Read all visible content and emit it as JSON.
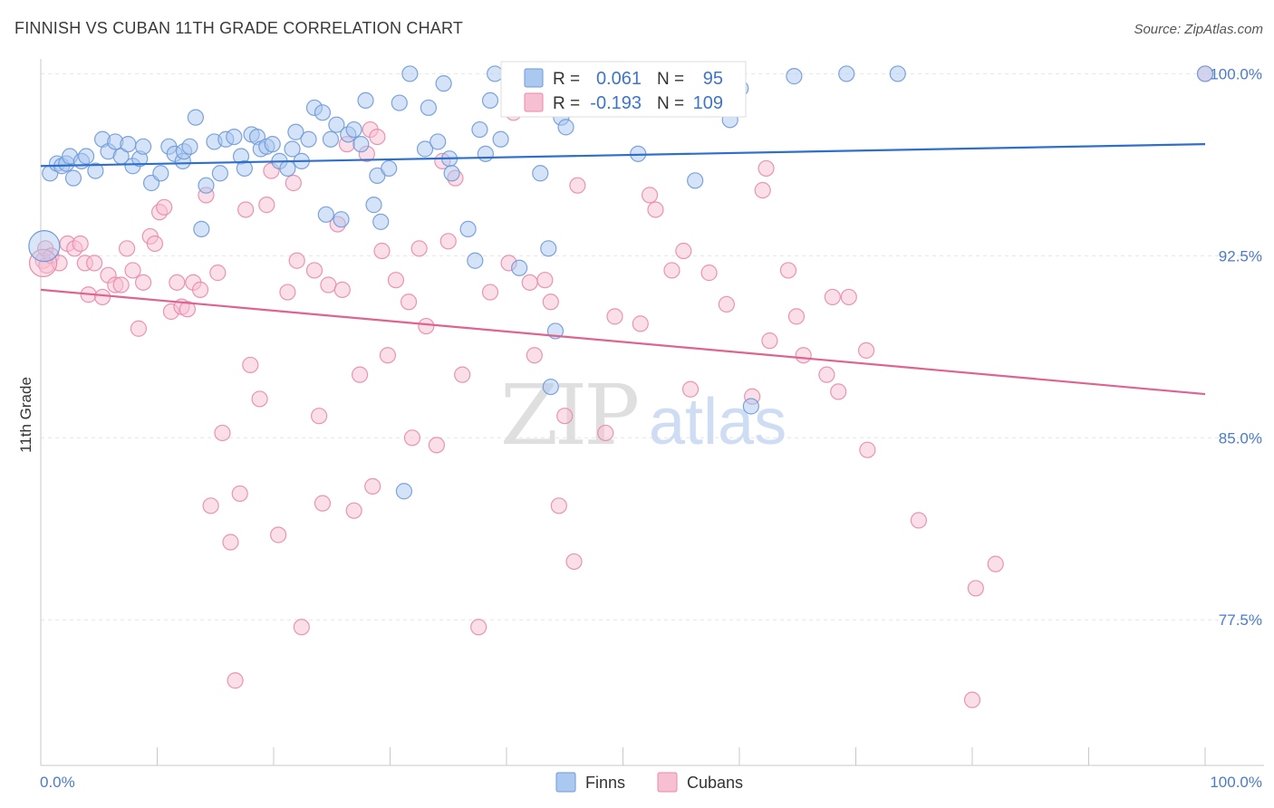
{
  "header": {
    "title": "FINNISH VS CUBAN 11TH GRADE CORRELATION CHART",
    "source": "Source: ZipAtlas.com"
  },
  "watermark": {
    "zip": "ZIP",
    "atlas": "atlas"
  },
  "stats_legend": {
    "finns": {
      "r_label": "R =",
      "r_value": "0.061",
      "n_label": "N =",
      "n_value": "95"
    },
    "cubans": {
      "r_label": "R =",
      "r_value": "-0.193",
      "n_label": "N =",
      "n_value": "109"
    }
  },
  "bottom_legend": {
    "finns": "Finns",
    "cubans": "Cubans"
  },
  "colors": {
    "finns_fill": "#aac8f0",
    "finns_stroke": "#6f9ad8",
    "finns_line": "#2e6fce",
    "cubans_fill": "#f7bfd2",
    "cubans_stroke": "#e98aab",
    "cubans_line": "#e0628f",
    "tick_text": "#4a7cc9",
    "grid": "#e6e6e6"
  },
  "chart_data": {
    "type": "scatter",
    "title": "FINNISH VS CUBAN 11TH GRADE CORRELATION CHART",
    "xlabel": "",
    "ylabel": "11th Grade",
    "xlim": [
      0,
      100
    ],
    "ylim": [
      71.5,
      100.8
    ],
    "x_tick_labels": [
      "0.0%",
      "100.0%"
    ],
    "y_ticks": [
      77.5,
      85.0,
      92.5,
      100.0
    ],
    "y_tick_labels": [
      "77.5%",
      "85.0%",
      "92.5%",
      "100.0%"
    ],
    "grid": "horizontal dashed",
    "legend_position": "top-center",
    "series": [
      {
        "name": "Finns",
        "trend": {
          "x": [
            0,
            100
          ],
          "y": [
            96.2,
            97.1
          ]
        },
        "points": [
          [
            0.8,
            95.9
          ],
          [
            1.4,
            96.3
          ],
          [
            1.8,
            96.2
          ],
          [
            2.2,
            96.3
          ],
          [
            2.5,
            96.6
          ],
          [
            2.8,
            95.7
          ],
          [
            3.5,
            96.4
          ],
          [
            3.9,
            96.6
          ],
          [
            4.7,
            96.0
          ],
          [
            5.3,
            97.3
          ],
          [
            5.8,
            96.8
          ],
          [
            6.4,
            97.2
          ],
          [
            6.9,
            96.6
          ],
          [
            7.5,
            97.1
          ],
          [
            7.9,
            96.2
          ],
          [
            8.5,
            96.5
          ],
          [
            8.8,
            97.0
          ],
          [
            9.5,
            95.5
          ],
          [
            10.3,
            95.9
          ],
          [
            11.0,
            97.0
          ],
          [
            11.5,
            96.7
          ],
          [
            12.2,
            96.4
          ],
          [
            12.3,
            96.8
          ],
          [
            12.8,
            97.0
          ],
          [
            13.3,
            98.2
          ],
          [
            13.8,
            93.6
          ],
          [
            14.2,
            95.4
          ],
          [
            14.9,
            97.2
          ],
          [
            15.4,
            95.9
          ],
          [
            15.9,
            97.3
          ],
          [
            16.6,
            97.4
          ],
          [
            17.2,
            96.6
          ],
          [
            17.5,
            96.1
          ],
          [
            18.1,
            97.5
          ],
          [
            18.6,
            97.4
          ],
          [
            18.9,
            96.9
          ],
          [
            19.4,
            97.0
          ],
          [
            19.9,
            97.1
          ],
          [
            20.5,
            96.4
          ],
          [
            21.2,
            96.1
          ],
          [
            21.6,
            96.9
          ],
          [
            21.9,
            97.6
          ],
          [
            22.4,
            96.4
          ],
          [
            23.0,
            97.3
          ],
          [
            23.5,
            98.6
          ],
          [
            24.2,
            98.4
          ],
          [
            24.5,
            94.2
          ],
          [
            24.9,
            97.3
          ],
          [
            25.4,
            97.9
          ],
          [
            25.8,
            94.0
          ],
          [
            26.4,
            97.5
          ],
          [
            26.9,
            97.7
          ],
          [
            27.5,
            97.1
          ],
          [
            27.9,
            98.9
          ],
          [
            28.6,
            94.6
          ],
          [
            28.9,
            95.8
          ],
          [
            29.2,
            93.9
          ],
          [
            29.9,
            96.1
          ],
          [
            30.8,
            98.8
          ],
          [
            31.7,
            100.0
          ],
          [
            31.2,
            82.8
          ],
          [
            33.0,
            96.9
          ],
          [
            33.3,
            98.6
          ],
          [
            34.1,
            97.2
          ],
          [
            34.6,
            99.6
          ],
          [
            35.1,
            96.5
          ],
          [
            35.3,
            95.9
          ],
          [
            36.7,
            93.6
          ],
          [
            37.3,
            92.3
          ],
          [
            37.7,
            97.7
          ],
          [
            38.2,
            96.7
          ],
          [
            38.6,
            98.9
          ],
          [
            39.0,
            100.0
          ],
          [
            39.5,
            97.3
          ],
          [
            40.4,
            99.3
          ],
          [
            41.1,
            92.0
          ],
          [
            42.6,
            98.8
          ],
          [
            42.9,
            95.9
          ],
          [
            43.6,
            92.8
          ],
          [
            43.8,
            87.1
          ],
          [
            44.2,
            89.4
          ],
          [
            44.7,
            98.2
          ],
          [
            45.1,
            97.8
          ],
          [
            46.3,
            99.0
          ],
          [
            47.1,
            99.8
          ],
          [
            49.2,
            98.8
          ],
          [
            51.3,
            96.7
          ],
          [
            53.0,
            99.9
          ],
          [
            56.2,
            95.6
          ],
          [
            55.7,
            100.0
          ],
          [
            59.2,
            98.1
          ],
          [
            60.1,
            99.4
          ],
          [
            61.0,
            86.3
          ],
          [
            64.7,
            99.9
          ],
          [
            69.2,
            100.0
          ],
          [
            73.6,
            100.0
          ],
          [
            100.0,
            100.0
          ]
        ]
      },
      {
        "name": "Cubans",
        "trend": {
          "x": [
            0,
            100
          ],
          "y": [
            91.1,
            86.8
          ]
        },
        "points": [
          [
            0.2,
            92.3
          ],
          [
            0.4,
            92.8
          ],
          [
            0.5,
            92.1
          ],
          [
            0.9,
            92.5
          ],
          [
            1.6,
            92.2
          ],
          [
            2.3,
            93.0
          ],
          [
            2.9,
            92.8
          ],
          [
            3.4,
            93.0
          ],
          [
            3.8,
            92.2
          ],
          [
            4.1,
            90.9
          ],
          [
            4.6,
            92.2
          ],
          [
            5.3,
            90.8
          ],
          [
            5.8,
            91.7
          ],
          [
            6.4,
            91.3
          ],
          [
            6.9,
            91.3
          ],
          [
            7.4,
            92.8
          ],
          [
            7.9,
            91.9
          ],
          [
            8.4,
            89.5
          ],
          [
            8.8,
            91.4
          ],
          [
            9.4,
            93.3
          ],
          [
            9.8,
            93.0
          ],
          [
            10.2,
            94.3
          ],
          [
            10.6,
            94.5
          ],
          [
            11.2,
            90.2
          ],
          [
            11.7,
            91.4
          ],
          [
            12.1,
            90.4
          ],
          [
            12.6,
            90.3
          ],
          [
            13.1,
            91.4
          ],
          [
            13.7,
            91.1
          ],
          [
            14.2,
            95.0
          ],
          [
            14.6,
            82.2
          ],
          [
            15.2,
            91.8
          ],
          [
            15.6,
            85.2
          ],
          [
            16.3,
            80.7
          ],
          [
            16.7,
            75.0
          ],
          [
            17.1,
            82.7
          ],
          [
            17.6,
            94.4
          ],
          [
            18.0,
            88.0
          ],
          [
            18.8,
            86.6
          ],
          [
            19.4,
            94.6
          ],
          [
            19.8,
            96.0
          ],
          [
            20.4,
            81.0
          ],
          [
            21.2,
            91.0
          ],
          [
            21.7,
            95.5
          ],
          [
            22.0,
            92.3
          ],
          [
            22.4,
            77.2
          ],
          [
            23.5,
            91.9
          ],
          [
            23.9,
            85.9
          ],
          [
            24.2,
            82.3
          ],
          [
            24.7,
            91.3
          ],
          [
            25.5,
            93.8
          ],
          [
            25.9,
            91.1
          ],
          [
            26.3,
            97.1
          ],
          [
            26.9,
            82.0
          ],
          [
            27.4,
            87.6
          ],
          [
            28.0,
            96.7
          ],
          [
            28.3,
            97.7
          ],
          [
            28.5,
            83.0
          ],
          [
            28.9,
            97.4
          ],
          [
            29.3,
            92.7
          ],
          [
            29.8,
            88.4
          ],
          [
            30.5,
            91.5
          ],
          [
            31.6,
            90.6
          ],
          [
            31.9,
            85.0
          ],
          [
            32.5,
            92.8
          ],
          [
            33.1,
            89.6
          ],
          [
            34.0,
            84.7
          ],
          [
            34.5,
            96.4
          ],
          [
            35.0,
            93.1
          ],
          [
            35.6,
            95.7
          ],
          [
            36.2,
            87.6
          ],
          [
            37.6,
            77.2
          ],
          [
            38.6,
            91.0
          ],
          [
            40.2,
            92.2
          ],
          [
            40.6,
            98.4
          ],
          [
            42.0,
            91.4
          ],
          [
            42.4,
            88.4
          ],
          [
            43.3,
            91.5
          ],
          [
            43.8,
            90.6
          ],
          [
            44.5,
            82.2
          ],
          [
            45.0,
            85.9
          ],
          [
            45.8,
            79.9
          ],
          [
            46.1,
            95.4
          ],
          [
            48.5,
            85.2
          ],
          [
            49.3,
            90.0
          ],
          [
            51.5,
            89.7
          ],
          [
            52.3,
            95.0
          ],
          [
            52.8,
            94.4
          ],
          [
            54.2,
            91.9
          ],
          [
            55.2,
            92.7
          ],
          [
            55.8,
            87.0
          ],
          [
            57.4,
            91.8
          ],
          [
            58.9,
            90.5
          ],
          [
            61.1,
            86.7
          ],
          [
            62.0,
            95.2
          ],
          [
            62.3,
            96.1
          ],
          [
            62.6,
            89.0
          ],
          [
            64.2,
            91.9
          ],
          [
            64.9,
            90.0
          ],
          [
            65.5,
            88.4
          ],
          [
            67.5,
            87.6
          ],
          [
            68.0,
            90.8
          ],
          [
            68.5,
            86.9
          ],
          [
            69.4,
            90.8
          ],
          [
            70.9,
            88.6
          ],
          [
            71.0,
            84.5
          ],
          [
            75.4,
            81.6
          ],
          [
            80.0,
            74.2
          ],
          [
            80.3,
            78.8
          ],
          [
            82.0,
            79.8
          ],
          [
            100.0,
            100.0
          ]
        ]
      }
    ]
  }
}
